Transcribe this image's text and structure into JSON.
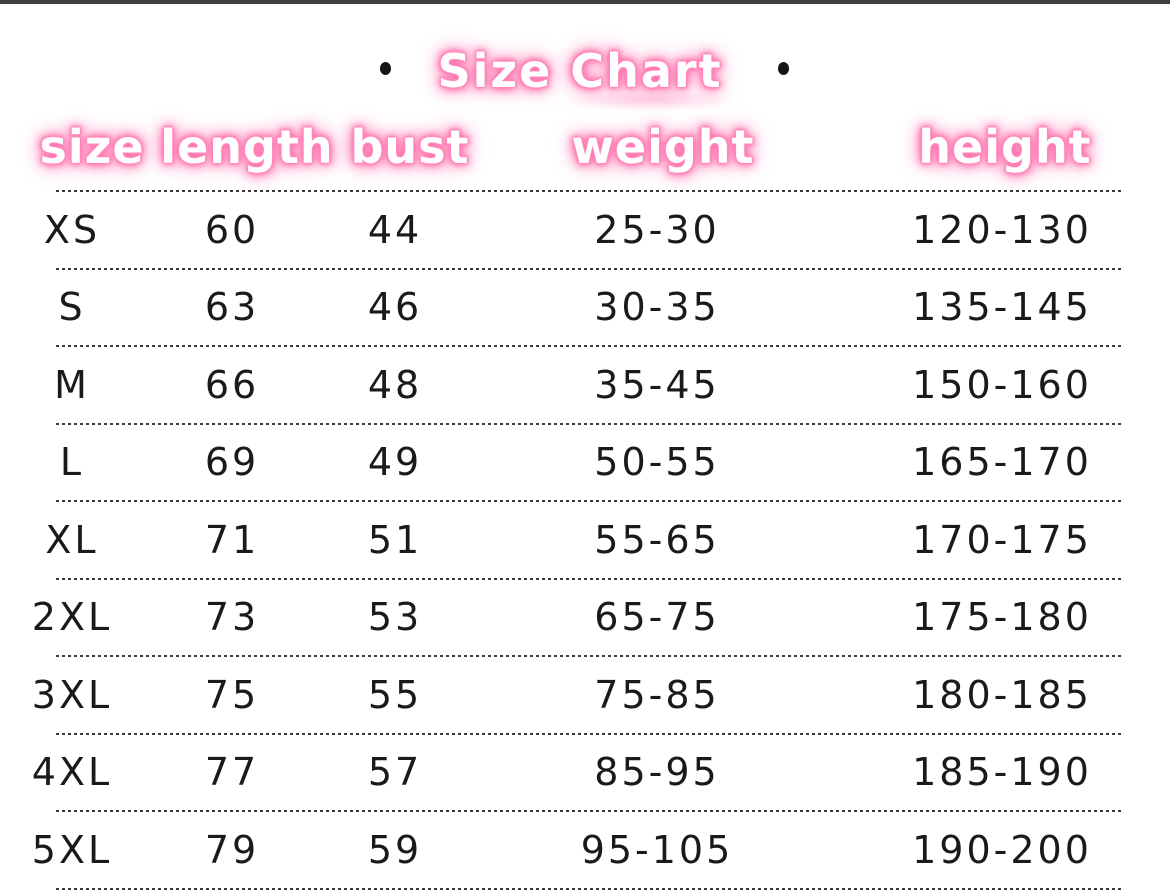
{
  "page": {
    "background_color": "#ffffff",
    "top_bar_color": "#3f3f3f",
    "text_color": "#1a1a1a",
    "glow_color": "#ff6fae"
  },
  "title": {
    "text": "Size Chart",
    "left_bullet": "•",
    "right_bullet": "•"
  },
  "chart_data": {
    "type": "table",
    "title": "Size Chart",
    "columns": [
      "size",
      "length",
      "bust",
      "weight",
      "height"
    ],
    "rows": [
      [
        "XS",
        "60",
        "44",
        "25-30",
        "120-130"
      ],
      [
        "S",
        "63",
        "46",
        "30-35",
        "135-145"
      ],
      [
        "M",
        "66",
        "48",
        "35-45",
        "150-160"
      ],
      [
        "L",
        "69",
        "49",
        "50-55",
        "165-170"
      ],
      [
        "XL",
        "71",
        "51",
        "55-65",
        "170-175"
      ],
      [
        "2XL",
        "73",
        "53",
        "65-75",
        "175-180"
      ],
      [
        "3XL",
        "75",
        "55",
        "75-85",
        "180-185"
      ],
      [
        "4XL",
        "77",
        "57",
        "85-95",
        "185-190"
      ],
      [
        "5XL",
        "79",
        "59",
        "95-105",
        "190-200"
      ]
    ]
  }
}
